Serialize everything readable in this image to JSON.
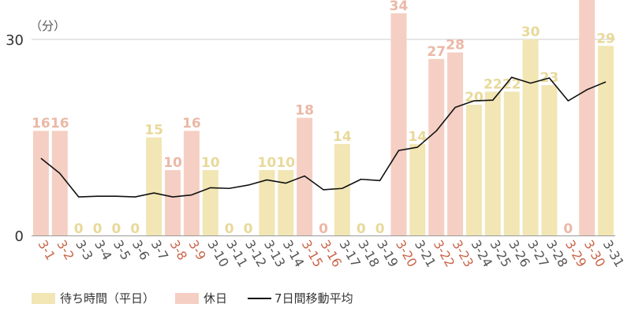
{
  "chart_data": {
    "type": "bar",
    "unit_label": "（分）",
    "categories": [
      "3-1",
      "3-2",
      "3-3",
      "3-4",
      "3-5",
      "3-6",
      "3-7",
      "3-8",
      "3-9",
      "3-10",
      "3-11",
      "3-12",
      "3-13",
      "3-14",
      "3-15",
      "3-16",
      "3-17",
      "3-18",
      "3-19",
      "3-20",
      "3-21",
      "3-22",
      "3-23",
      "3-24",
      "3-25",
      "3-26",
      "3-27",
      "3-28",
      "3-29",
      "3-30",
      "3-31"
    ],
    "values": [
      16,
      16,
      0,
      0,
      0,
      0,
      15,
      10,
      16,
      10,
      0,
      0,
      10,
      10,
      18,
      0,
      14,
      0,
      0,
      34,
      14,
      27,
      28,
      20,
      22,
      22,
      30,
      23,
      0,
      37,
      29
    ],
    "value_labels": [
      "16",
      "16",
      "0",
      "0",
      "0",
      "0",
      "15",
      "10",
      "16",
      "10",
      "0",
      "0",
      "10",
      "10",
      "18",
      "0",
      "14",
      "0",
      "0",
      "34",
      "14",
      "27",
      "28",
      "20",
      "22",
      "22",
      "30",
      "23",
      "0",
      "",
      "29"
    ],
    "holiday": [
      true,
      true,
      false,
      false,
      false,
      false,
      false,
      true,
      true,
      false,
      false,
      false,
      false,
      false,
      true,
      true,
      false,
      false,
      false,
      true,
      false,
      true,
      true,
      false,
      false,
      false,
      false,
      false,
      true,
      true,
      false
    ],
    "moving_average": [
      11.8,
      9.5,
      5.9,
      6.0,
      6.0,
      5.9,
      6.5,
      5.9,
      6.2,
      7.3,
      7.2,
      7.7,
      8.5,
      8.0,
      9.1,
      7.0,
      7.2,
      8.6,
      8.4,
      13.0,
      13.5,
      16.0,
      19.6,
      20.6,
      20.7,
      24.2,
      23.3,
      24.1,
      20.6,
      22.3,
      23.5
    ],
    "ylim": [
      0,
      36
    ],
    "yticks": [
      0,
      30
    ],
    "grid": true,
    "series_names": {
      "weekday": "待ち時間（平日）",
      "holiday": "休日",
      "average": "7日間移動平均"
    },
    "colors": {
      "weekday": "#f1e6b4",
      "holiday": "#f5cfc3",
      "weekday_label": "#e8d999",
      "holiday_label": "#ebb8a6",
      "average": "#111111",
      "holiday_tick": "#c9664a",
      "weekday_tick": "#555555",
      "grid": "#cccccc"
    }
  }
}
